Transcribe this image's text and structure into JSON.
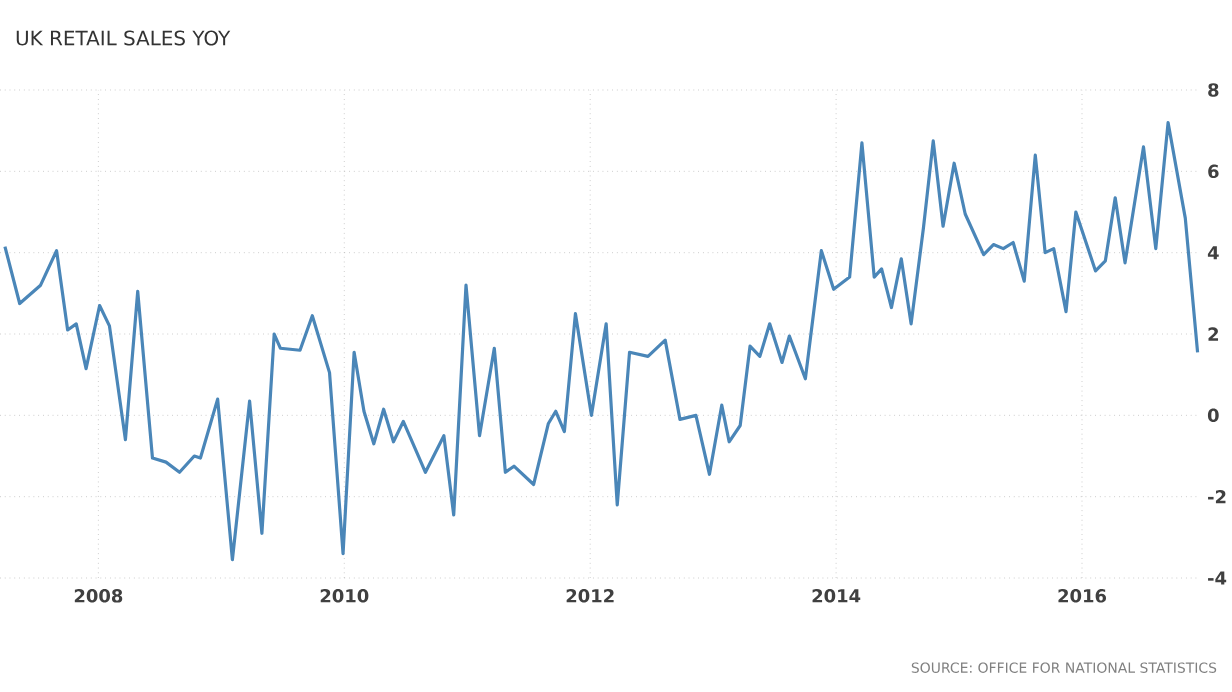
{
  "chart_data": {
    "type": "line",
    "title": "UK RETAIL SALES YOY",
    "annotations": [
      "SOURCE: OFFICE FOR NATIONAL STATISTICS"
    ],
    "x": [
      2007.24,
      2007.36,
      2007.53,
      2007.66,
      2007.75,
      2007.82,
      2007.9,
      2008.01,
      2008.09,
      2008.22,
      2008.32,
      2008.44,
      2008.55,
      2008.66,
      2008.78,
      2008.83,
      2008.97,
      2009.09,
      2009.23,
      2009.33,
      2009.43,
      2009.48,
      2009.64,
      2009.74,
      2009.88,
      2009.99,
      2010.08,
      2010.16,
      2010.24,
      2010.32,
      2010.4,
      2010.48,
      2010.61,
      2010.66,
      2010.81,
      2010.89,
      2010.99,
      2011.1,
      2011.22,
      2011.31,
      2011.38,
      2011.54,
      2011.66,
      2011.72,
      2011.79,
      2011.88,
      2012.01,
      2012.13,
      2012.22,
      2012.32,
      2012.47,
      2012.61,
      2012.73,
      2012.86,
      2012.97,
      2013.07,
      2013.13,
      2013.22,
      2013.3,
      2013.38,
      2013.46,
      2013.56,
      2013.62,
      2013.75,
      2013.88,
      2013.98,
      2014.11,
      2014.21,
      2014.31,
      2014.37,
      2014.45,
      2014.53,
      2014.61,
      2014.71,
      2014.79,
      2014.87,
      2014.96,
      2015.05,
      2015.2,
      2015.28,
      2015.36,
      2015.44,
      2015.53,
      2015.62,
      2015.7,
      2015.77,
      2015.87,
      2015.95,
      2016.11,
      2016.19,
      2016.27,
      2016.35,
      2016.5,
      2016.6,
      2016.7,
      2016.84,
      2016.94
    ],
    "series": [
      {
        "color": "#4a86b8",
        "values": [
          4.15,
          2.75,
          3.2,
          4.05,
          2.1,
          2.25,
          1.15,
          2.7,
          2.2,
          -0.6,
          3.05,
          -1.05,
          -1.15,
          -1.4,
          -1.0,
          -1.05,
          0.4,
          -3.55,
          0.35,
          -2.9,
          2.0,
          1.65,
          1.6,
          2.45,
          1.05,
          -3.4,
          1.55,
          0.1,
          -0.7,
          0.15,
          -0.65,
          -0.15,
          -1.05,
          -1.4,
          -0.5,
          -2.45,
          3.2,
          -0.5,
          1.65,
          -1.4,
          -1.25,
          -1.7,
          -0.2,
          0.1,
          -0.4,
          2.5,
          0.0,
          2.25,
          -2.2,
          1.55,
          1.45,
          1.85,
          -0.1,
          0.0,
          -1.45,
          0.25,
          -0.65,
          -0.25,
          1.7,
          1.45,
          2.25,
          1.3,
          1.95,
          0.9,
          4.05,
          3.1,
          3.4,
          6.7,
          3.4,
          3.6,
          2.65,
          3.85,
          2.25,
          4.6,
          6.75,
          4.65,
          6.2,
          4.95,
          3.95,
          4.2,
          4.1,
          4.25,
          3.3,
          6.4,
          4.0,
          4.1,
          2.55,
          5.0,
          3.55,
          3.8,
          5.35,
          3.75,
          6.6,
          4.1,
          7.2,
          4.85,
          1.55
        ]
      }
    ],
    "xlim": [
      2007.2,
      2016.96
    ],
    "ylim": [
      -4,
      8
    ],
    "xticks": [
      2008,
      2010,
      2012,
      2014,
      2016
    ],
    "yticks": [
      -4,
      -2,
      0,
      2,
      4,
      6,
      8
    ],
    "grid": true,
    "line_style": "solid",
    "marker": "none",
    "legend": false
  }
}
